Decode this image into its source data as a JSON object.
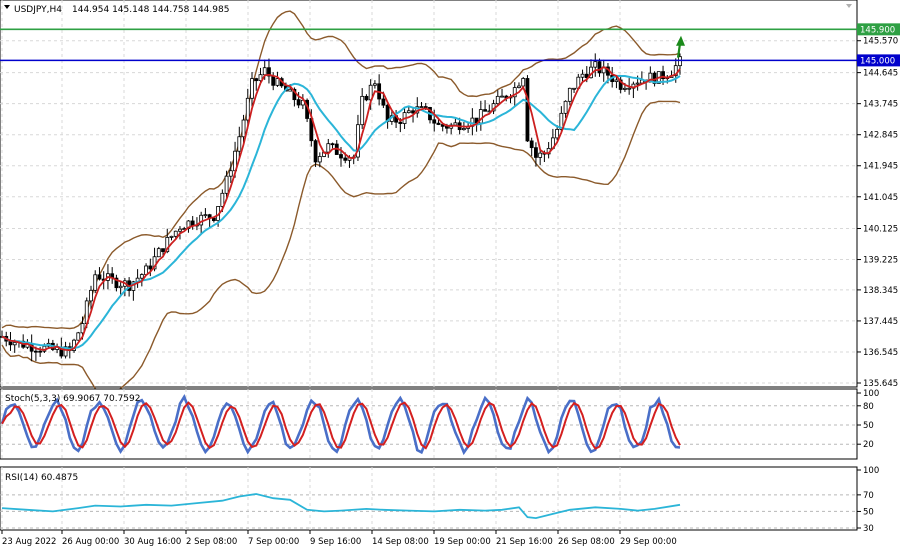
{
  "header": {
    "symbol": "USDJPY,H4",
    "ohlc": "144.954 145.148 144.758 144.985"
  },
  "chart_data": {
    "type": "candlestick",
    "symbol": "USDJPY",
    "timeframe": "H4",
    "price_axis": {
      "ylim": [
        135.645,
        146.2
      ],
      "tick_labels": [
        "145.570",
        "144.645",
        "143.745",
        "142.845",
        "141.945",
        "141.045",
        "140.125",
        "139.225",
        "138.345",
        "137.445",
        "136.545",
        "135.645"
      ]
    },
    "levels": [
      {
        "label": "145.900",
        "value": 145.9,
        "color": "#2ea043"
      },
      {
        "label": "145.000",
        "value": 145.0,
        "color": "#0000cc"
      }
    ],
    "x_axis": {
      "tick_labels": [
        "23 Aug 2022",
        "26 Aug 00:00",
        "30 Aug 16:00",
        "2 Sep 08:00",
        "7 Sep 00:00",
        "9 Sep 16:00",
        "14 Sep 08:00",
        "19 Sep 00:00",
        "21 Sep 16:00",
        "26 Sep 08:00",
        "29 Sep 00:00"
      ]
    },
    "price_path": [
      [
        0,
        137.0
      ],
      [
        4,
        136.8
      ],
      [
        8,
        136.7
      ],
      [
        12,
        136.6
      ],
      [
        16,
        136.55
      ],
      [
        19,
        137.4
      ],
      [
        22,
        138.8
      ],
      [
        26,
        138.6
      ],
      [
        30,
        138.5
      ],
      [
        34,
        138.9
      ],
      [
        38,
        139.6
      ],
      [
        42,
        140.2
      ],
      [
        46,
        140.4
      ],
      [
        50,
        140.5
      ],
      [
        53,
        141.5
      ],
      [
        56,
        142.8
      ],
      [
        59,
        144.3
      ],
      [
        62,
        144.7
      ],
      [
        65,
        144.3
      ],
      [
        68,
        144.0
      ],
      [
        71,
        143.7
      ],
      [
        74,
        142.2
      ],
      [
        77,
        142.5
      ],
      [
        80,
        142.3
      ],
      [
        83,
        142.2
      ],
      [
        85,
        143.8
      ],
      [
        88,
        144.4
      ],
      [
        91,
        143.2
      ],
      [
        94,
        143.3
      ],
      [
        97,
        143.6
      ],
      [
        100,
        143.5
      ],
      [
        103,
        143.1
      ],
      [
        106,
        143.1
      ],
      [
        109,
        143.2
      ],
      [
        112,
        143.3
      ],
      [
        115,
        143.6
      ],
      [
        118,
        143.9
      ],
      [
        121,
        144.2
      ],
      [
        123,
        144.6
      ],
      [
        124,
        142.8
      ],
      [
        126,
        142.2
      ],
      [
        128,
        142.3
      ],
      [
        131,
        143.0
      ],
      [
        134,
        144.1
      ],
      [
        137,
        144.6
      ],
      [
        140,
        144.8
      ],
      [
        143,
        144.6
      ],
      [
        146,
        144.3
      ],
      [
        149,
        144.4
      ],
      [
        152,
        144.5
      ],
      [
        155,
        144.5
      ],
      [
        158,
        144.7
      ],
      [
        160,
        144.95
      ]
    ],
    "level_arrow": {
      "at": 160,
      "value": 145.6,
      "color": "#1a8a1a"
    },
    "indicators": [
      {
        "name": "Stoch(5,3,3) 69.9067 70.7592",
        "ylim": [
          0,
          100
        ],
        "levels": [
          80,
          50,
          20
        ],
        "tick_labels": [
          "100",
          "80",
          "50",
          "20"
        ]
      },
      {
        "name": "RSI(14) 60.4875",
        "ylim": [
          30,
          100
        ],
        "levels": [
          70,
          50,
          30
        ],
        "tick_labels": [
          "100",
          "70",
          "50",
          "30"
        ],
        "series": [
          [
            0,
            54
          ],
          [
            6,
            52
          ],
          [
            12,
            50
          ],
          [
            18,
            54
          ],
          [
            22,
            57
          ],
          [
            28,
            56
          ],
          [
            34,
            58
          ],
          [
            40,
            57
          ],
          [
            46,
            60
          ],
          [
            52,
            63
          ],
          [
            56,
            68
          ],
          [
            60,
            71
          ],
          [
            64,
            66
          ],
          [
            68,
            64
          ],
          [
            72,
            52
          ],
          [
            76,
            50
          ],
          [
            80,
            51
          ],
          [
            86,
            53
          ],
          [
            90,
            52
          ],
          [
            96,
            51
          ],
          [
            102,
            50
          ],
          [
            108,
            52
          ],
          [
            114,
            51
          ],
          [
            118,
            52
          ],
          [
            122,
            55
          ],
          [
            124,
            43
          ],
          [
            126,
            42
          ],
          [
            130,
            47
          ],
          [
            134,
            52
          ],
          [
            140,
            55
          ],
          [
            146,
            53
          ],
          [
            150,
            51
          ],
          [
            154,
            53
          ],
          [
            160,
            58
          ]
        ]
      }
    ]
  }
}
